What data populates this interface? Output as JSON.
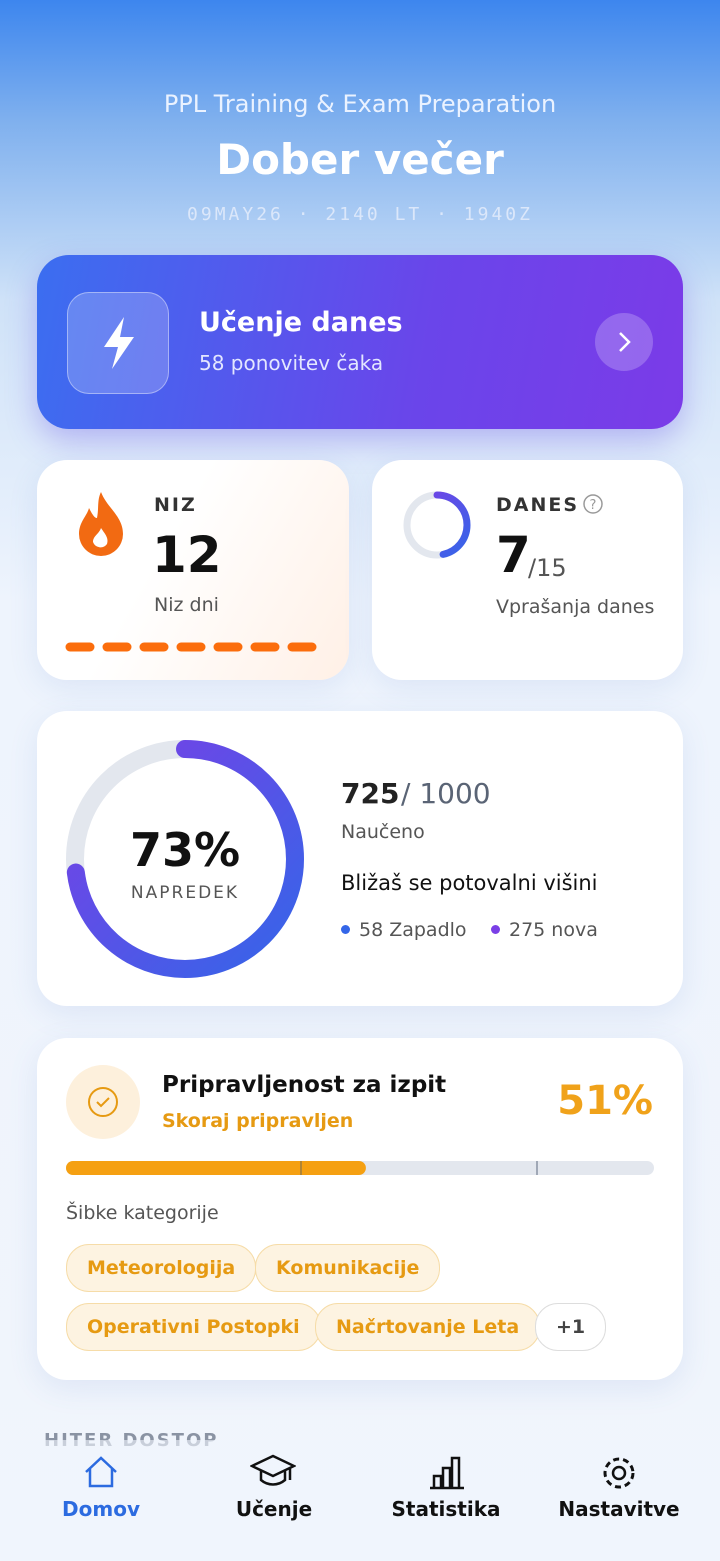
{
  "header": {
    "subtitle": "PPL Training & Exam Preparation",
    "title": "Dober večer",
    "time": "09MAY26 · 2140 LT · 1940Z"
  },
  "study": {
    "title": "Učenje danes",
    "subtitle": "58 ponovitev čaka"
  },
  "streak": {
    "label": "NIZ",
    "value": 12,
    "caption": "Niz dni"
  },
  "today": {
    "label": "DANES",
    "done": 7,
    "total": {
      "value": 15,
      "label": "/15"
    },
    "caption": "Vprašanja danes"
  },
  "progress": {
    "learned": 725,
    "total": {
      "value": 1000,
      "label": "/ 1000"
    },
    "learned_label": "Naučeno",
    "percent": {
      "value": 73,
      "label": "73%"
    },
    "percent_label": "NAPREDEK",
    "message": "Bližaš se potovalni višini",
    "legend": [
      "58 Zapadlo",
      "275 nova"
    ]
  },
  "readiness": {
    "title": "Pripravljenost za izpit",
    "status": "Skoraj pripravljen",
    "percent": {
      "value": 51,
      "label": "51%"
    },
    "weak_label": "Šibke kategorije",
    "categories": [
      "Meteorologija",
      "Komunikacije",
      "Operativni Postopki",
      "Načrtovanje Leta"
    ],
    "more": "+1"
  },
  "quick_access": {
    "title": "HITER DOSTOP"
  },
  "nav": [
    "Domov",
    "Učenje",
    "Statistika",
    "Nastavitve"
  ]
}
